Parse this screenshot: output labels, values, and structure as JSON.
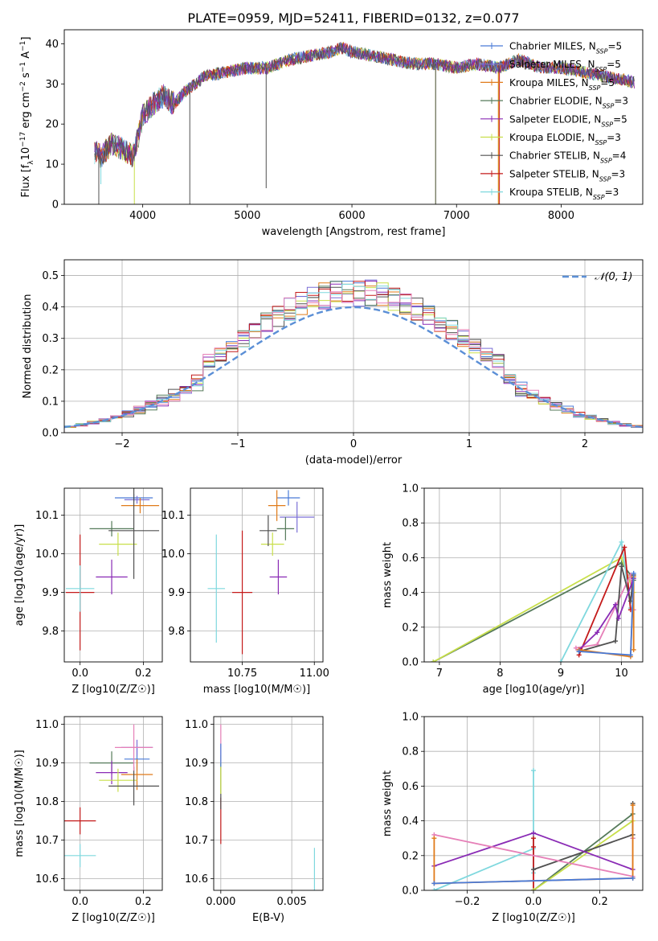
{
  "figure": {
    "title": "PLATE=0959, MJD=52411, FIBERID=0132, z=0.077"
  },
  "colors": {
    "Chabrier MILES": "#4a7bd8",
    "Salpeter MILES": "#7a6fd6",
    "Kroupa MILES": "#e07b1a",
    "Chabrier ELODIE": "#557a5a",
    "Salpeter ELODIE": "#8a2bb5",
    "Kroupa ELODIE": "#c8df4a",
    "Chabrier STELIB": "#505050",
    "Salpeter STELIB": "#c41a1a",
    "Kroupa STELIB": "#7fd8de",
    "pink": "#e680b8",
    "gaussian": "#5b8fd6"
  },
  "chart_data": [
    {
      "type": "line",
      "title": "PLATE=0959, MJD=52411, FIBERID=0132, z=0.077",
      "xlabel": "wavelength [Angstrom, rest frame]",
      "ylabel": "Flux [f_λ 10^-17 erg cm^-2 s^-1 A^-1]",
      "xlim": [
        3250,
        8780
      ],
      "ylim": [
        0,
        43.5
      ],
      "xticks": [
        4000,
        5000,
        6000,
        7000,
        8000
      ],
      "yticks": [
        0,
        10,
        20,
        30,
        40
      ],
      "legend_position": "top-right",
      "legend": [
        {
          "base": "Chabrier MILES",
          "n": "5"
        },
        {
          "base": "Salpeter MILES",
          "n": "5"
        },
        {
          "base": "Kroupa MILES",
          "n": "5"
        },
        {
          "base": "Chabrier ELODIE",
          "n": "3"
        },
        {
          "base": "Salpeter ELODIE",
          "n": "5"
        },
        {
          "base": "Kroupa ELODIE",
          "n": "3"
        },
        {
          "base": "Chabrier STELIB",
          "n": "4"
        },
        {
          "base": "Salpeter STELIB",
          "n": "3"
        },
        {
          "base": "Kroupa STELIB",
          "n": "3"
        }
      ],
      "continuum": {
        "x": [
          3550,
          3600,
          3700,
          3800,
          3900,
          3950,
          4000,
          4100,
          4200,
          4300,
          4400,
          4500,
          4600,
          4800,
          5000,
          5200,
          5400,
          5600,
          5800,
          5900,
          6000,
          6200,
          6400,
          6600,
          6800,
          7000,
          7200,
          7400,
          7600,
          7800,
          8000,
          8200,
          8400,
          8600,
          8750
        ],
        "y": [
          13,
          12,
          15,
          14,
          12,
          16,
          22,
          25,
          27,
          25,
          28,
          30,
          32,
          33,
          34,
          34,
          36,
          37,
          38,
          39,
          38,
          37,
          36,
          35,
          35,
          34,
          35,
          34,
          36,
          34,
          34,
          33,
          32,
          31,
          30
        ]
      }
    },
    {
      "type": "line",
      "xlabel": "(data-model)/error",
      "ylabel": "Normed distribution",
      "xlim": [
        -2.5,
        2.5
      ],
      "ylim": [
        0,
        0.55
      ],
      "xticks": [
        -2,
        -1,
        0,
        1,
        2
      ],
      "yticks": [
        0.0,
        0.1,
        0.2,
        0.3,
        0.4,
        0.5
      ],
      "legend": [
        "𝒩(0, 1)"
      ],
      "legend_position": "top-right",
      "series": [
        {
          "name": "𝒩(0, 1)",
          "x_range": [
            -2.5,
            2.5
          ],
          "function": "standard normal pdf"
        }
      ]
    },
    {
      "type": "scatter",
      "xlabel": "Z [log10(Z/Z☉)]",
      "ylabel": "age [log10(age/yr)]",
      "xlim": [
        -0.05,
        0.26
      ],
      "ylim": [
        9.72,
        10.17
      ],
      "xticks": [
        0.0,
        0.2
      ],
      "yticks": [
        9.8,
        9.9,
        10.0,
        10.1
      ],
      "points": [
        {
          "model": "Chabrier MILES",
          "x": 0.17,
          "y": 10.145,
          "xerr": 0.06,
          "yerr": 0.01
        },
        {
          "model": "Salpeter MILES",
          "x": 0.18,
          "y": 10.14,
          "xerr": 0.04,
          "yerr": 0.01
        },
        {
          "model": "Kroupa MILES",
          "x": 0.19,
          "y": 10.125,
          "xerr": 0.06,
          "yerr": 0.02
        },
        {
          "model": "Chabrier ELODIE",
          "x": 0.1,
          "y": 10.065,
          "xerr": 0.07,
          "yerr": 0.02
        },
        {
          "model": "Salpeter ELODIE",
          "x": 0.1,
          "y": 9.94,
          "xerr": 0.05,
          "yerr": 0.045
        },
        {
          "model": "Kroupa ELODIE",
          "x": 0.12,
          "y": 10.025,
          "xerr": 0.06,
          "yerr": 0.03
        },
        {
          "model": "Chabrier STELIB",
          "x": 0.17,
          "y": 10.06,
          "xerr": 0.08,
          "yerr": 0.125
        },
        {
          "model": "Salpeter STELIB",
          "x": 0.0,
          "y": 9.9,
          "xerr": 0.045,
          "yerr": 0.15
        },
        {
          "model": "Kroupa STELIB",
          "x": 0.0,
          "y": 9.91,
          "xerr": 0.045,
          "yerr": 0.06
        }
      ]
    },
    {
      "type": "scatter",
      "xlabel": "mass [log10(M/M☉)]",
      "ylabel": "",
      "xlim": [
        10.57,
        11.03
      ],
      "ylim": [
        9.72,
        10.17
      ],
      "xticks": [
        10.75,
        11.0
      ],
      "yticks": [
        9.8,
        9.9,
        10.0,
        10.1
      ],
      "points": [
        {
          "model": "Chabrier MILES",
          "x": 10.91,
          "y": 10.145,
          "xerr": 0.04,
          "yerr": 0.02
        },
        {
          "model": "Salpeter MILES",
          "x": 10.94,
          "y": 10.095,
          "xerr": 0.06,
          "yerr": 0.04
        },
        {
          "model": "Kroupa MILES",
          "x": 10.87,
          "y": 10.125,
          "xerr": 0.03,
          "yerr": 0.04
        },
        {
          "model": "Chabrier ELODIE",
          "x": 10.9,
          "y": 10.065,
          "xerr": 0.03,
          "yerr": 0.03
        },
        {
          "model": "Salpeter ELODIE",
          "x": 10.875,
          "y": 9.94,
          "xerr": 0.03,
          "yerr": 0.045
        },
        {
          "model": "Kroupa ELODIE",
          "x": 10.855,
          "y": 10.025,
          "xerr": 0.04,
          "yerr": 0.03
        },
        {
          "model": "Chabrier STELIB",
          "x": 10.84,
          "y": 10.06,
          "xerr": 0.03,
          "yerr": 0.04
        },
        {
          "model": "Salpeter STELIB",
          "x": 10.75,
          "y": 9.9,
          "xerr": 0.035,
          "yerr": 0.16
        },
        {
          "model": "Kroupa STELIB",
          "x": 10.66,
          "y": 9.91,
          "xerr": 0.03,
          "yerr": 0.14
        }
      ]
    },
    {
      "type": "line",
      "xlabel": "age [log10(age/yr)]",
      "ylabel": "mass weight",
      "xlim": [
        6.75,
        10.35
      ],
      "ylim": [
        0,
        1
      ],
      "xticks": [
        7,
        8,
        9,
        10
      ],
      "yticks": [
        0.0,
        0.2,
        0.4,
        0.6,
        0.8,
        1.0
      ],
      "series": [
        {
          "model": "Chabrier ELODIE",
          "x": [
            6.9,
            10.0,
            10.15,
            10.2
          ],
          "y": [
            0.0,
            0.57,
            0.5,
            0.47
          ]
        },
        {
          "model": "Kroupa ELODIE",
          "x": [
            6.9,
            10.0,
            10.2
          ],
          "y": [
            0.0,
            0.6,
            0.4
          ]
        },
        {
          "model": "Kroupa STELIB",
          "x": [
            9.0,
            10.0,
            10.15
          ],
          "y": [
            0.0,
            0.69,
            0.31
          ]
        },
        {
          "model": "Salpeter STELIB",
          "x": [
            9.3,
            10.05,
            10.15
          ],
          "y": [
            0.04,
            0.66,
            0.3
          ]
        },
        {
          "model": "pink",
          "x": [
            9.25,
            9.6,
            10.15,
            10.2
          ],
          "y": [
            0.08,
            0.1,
            0.5,
            0.3
          ]
        },
        {
          "model": "Chabrier STELIB",
          "x": [
            9.3,
            9.9,
            10.0,
            10.15,
            10.2
          ],
          "y": [
            0.06,
            0.12,
            0.55,
            0.35,
            0.5
          ]
        },
        {
          "model": "Salpeter ELODIE",
          "x": [
            9.3,
            9.6,
            9.9,
            9.95,
            10.2
          ],
          "y": [
            0.07,
            0.17,
            0.33,
            0.25,
            0.48
          ]
        },
        {
          "model": "Kroupa MILES",
          "x": [
            9.3,
            10.15,
            10.2,
            10.2
          ],
          "y": [
            0.07,
            0.03,
            0.49,
            0.07
          ]
        },
        {
          "model": "Chabrier MILES",
          "x": [
            9.3,
            10.15,
            10.2
          ],
          "y": [
            0.06,
            0.04,
            0.51
          ]
        }
      ]
    },
    {
      "type": "scatter",
      "xlabel": "Z [log10(Z/Z☉)]",
      "ylabel": "mass [log10(M/M☉)]",
      "xlim": [
        -0.05,
        0.26
      ],
      "ylim": [
        10.57,
        11.02
      ],
      "xticks": [
        0.0,
        0.2
      ],
      "yticks": [
        10.6,
        10.7,
        10.8,
        10.9,
        11.0
      ],
      "points": [
        {
          "model": "Chabrier MILES",
          "x": 0.18,
          "y": 10.91,
          "xerr": 0.04,
          "yerr": 0.03
        },
        {
          "model": "Salpeter MILES",
          "x": 0.18,
          "y": 10.94,
          "xerr": 0.05,
          "yerr": 0.02
        },
        {
          "model": "Kroupa MILES",
          "x": 0.18,
          "y": 10.87,
          "xerr": 0.05,
          "yerr": 0.04
        },
        {
          "model": "Chabrier ELODIE",
          "x": 0.1,
          "y": 10.9,
          "xerr": 0.07,
          "yerr": 0.03
        },
        {
          "model": "Salpeter ELODIE",
          "x": 0.1,
          "y": 10.875,
          "xerr": 0.05,
          "yerr": 0.03
        },
        {
          "model": "Kroupa ELODIE",
          "x": 0.12,
          "y": 10.855,
          "xerr": 0.06,
          "yerr": 0.03
        },
        {
          "model": "Chabrier STELIB",
          "x": 0.17,
          "y": 10.84,
          "xerr": 0.08,
          "yerr": 0.05
        },
        {
          "model": "Salpeter STELIB",
          "x": 0.0,
          "y": 10.75,
          "xerr": 0.05,
          "yerr": 0.035
        },
        {
          "model": "Kroupa STELIB",
          "x": 0.0,
          "y": 10.66,
          "xerr": 0.05,
          "yerr": 0.03
        },
        {
          "model": "pink",
          "x": 0.17,
          "y": 10.94,
          "xerr": 0.06,
          "yerr": 0.06
        }
      ]
    },
    {
      "type": "scatter",
      "xlabel": "E(B-V)",
      "ylabel": "",
      "xlim": [
        -0.0005,
        0.0072
      ],
      "ylim": [
        10.57,
        11.02
      ],
      "xticks": [
        0.0,
        0.005
      ],
      "yticks": [
        10.6,
        10.7,
        10.8,
        10.9,
        11.0
      ],
      "points": [
        {
          "model": "Salpeter STELIB",
          "x": 0.0,
          "y": 10.75,
          "xerr": 0,
          "yerr": 0.06
        },
        {
          "model": "Chabrier STELIB",
          "x": 0.0,
          "y": 10.84,
          "xerr": 0,
          "yerr": 0.06
        },
        {
          "model": "Kroupa ELODIE",
          "x": 0.0,
          "y": 10.87,
          "xerr": 0,
          "yerr": 0.05
        },
        {
          "model": "pink",
          "x": 0.0,
          "y": 10.95,
          "xerr": 0,
          "yerr": 0.05
        },
        {
          "model": "Chabrier MILES",
          "x": 0.0,
          "y": 10.92,
          "xerr": 0,
          "yerr": 0.03
        },
        {
          "model": "Kroupa STELIB",
          "x": 0.0066,
          "y": 10.62,
          "xerr": 0,
          "yerr": 0.06
        }
      ]
    },
    {
      "type": "line",
      "xlabel": "Z [log10(Z/Z☉)]",
      "ylabel": "mass weight",
      "xlim": [
        -0.33,
        0.33
      ],
      "ylim": [
        0,
        1
      ],
      "xticks": [
        -0.2,
        0.0,
        0.2
      ],
      "yticks": [
        0.0,
        0.2,
        0.4,
        0.6,
        0.8,
        1.0
      ],
      "series": [
        {
          "model": "Kroupa STELIB",
          "x": [
            -0.3,
            0.0,
            0.0,
            0.0
          ],
          "y": [
            0.0,
            0.24,
            0.69,
            0.1
          ]
        },
        {
          "model": "Salpeter STELIB",
          "x": [
            0.0,
            0.0,
            0.0
          ],
          "y": [
            0.3,
            0.0,
            0.25
          ]
        },
        {
          "model": "Chabrier ELODIE",
          "x": [
            0.0,
            0.3,
            0.3
          ],
          "y": [
            0.0,
            0.44,
            0.3
          ]
        },
        {
          "model": "Kroupa ELODIE",
          "x": [
            0.0,
            0.3
          ],
          "y": [
            0.0,
            0.4
          ]
        },
        {
          "model": "Chabrier STELIB",
          "x": [
            0.0,
            0.3,
            0.3
          ],
          "y": [
            0.12,
            0.32,
            0.5
          ]
        },
        {
          "model": "Salpeter ELODIE",
          "x": [
            -0.3,
            0.0,
            0.3
          ],
          "y": [
            0.14,
            0.33,
            0.12
          ]
        },
        {
          "model": "pink",
          "x": [
            -0.3,
            0.3,
            0.3
          ],
          "y": [
            0.32,
            0.08,
            0.3
          ]
        },
        {
          "model": "Kroupa MILES",
          "x": [
            -0.3,
            -0.3,
            0.3,
            0.3
          ],
          "y": [
            0.3,
            0.04,
            0.07,
            0.49
          ]
        },
        {
          "model": "Chabrier MILES",
          "x": [
            -0.3,
            0.3
          ],
          "y": [
            0.04,
            0.07
          ]
        }
      ]
    }
  ]
}
